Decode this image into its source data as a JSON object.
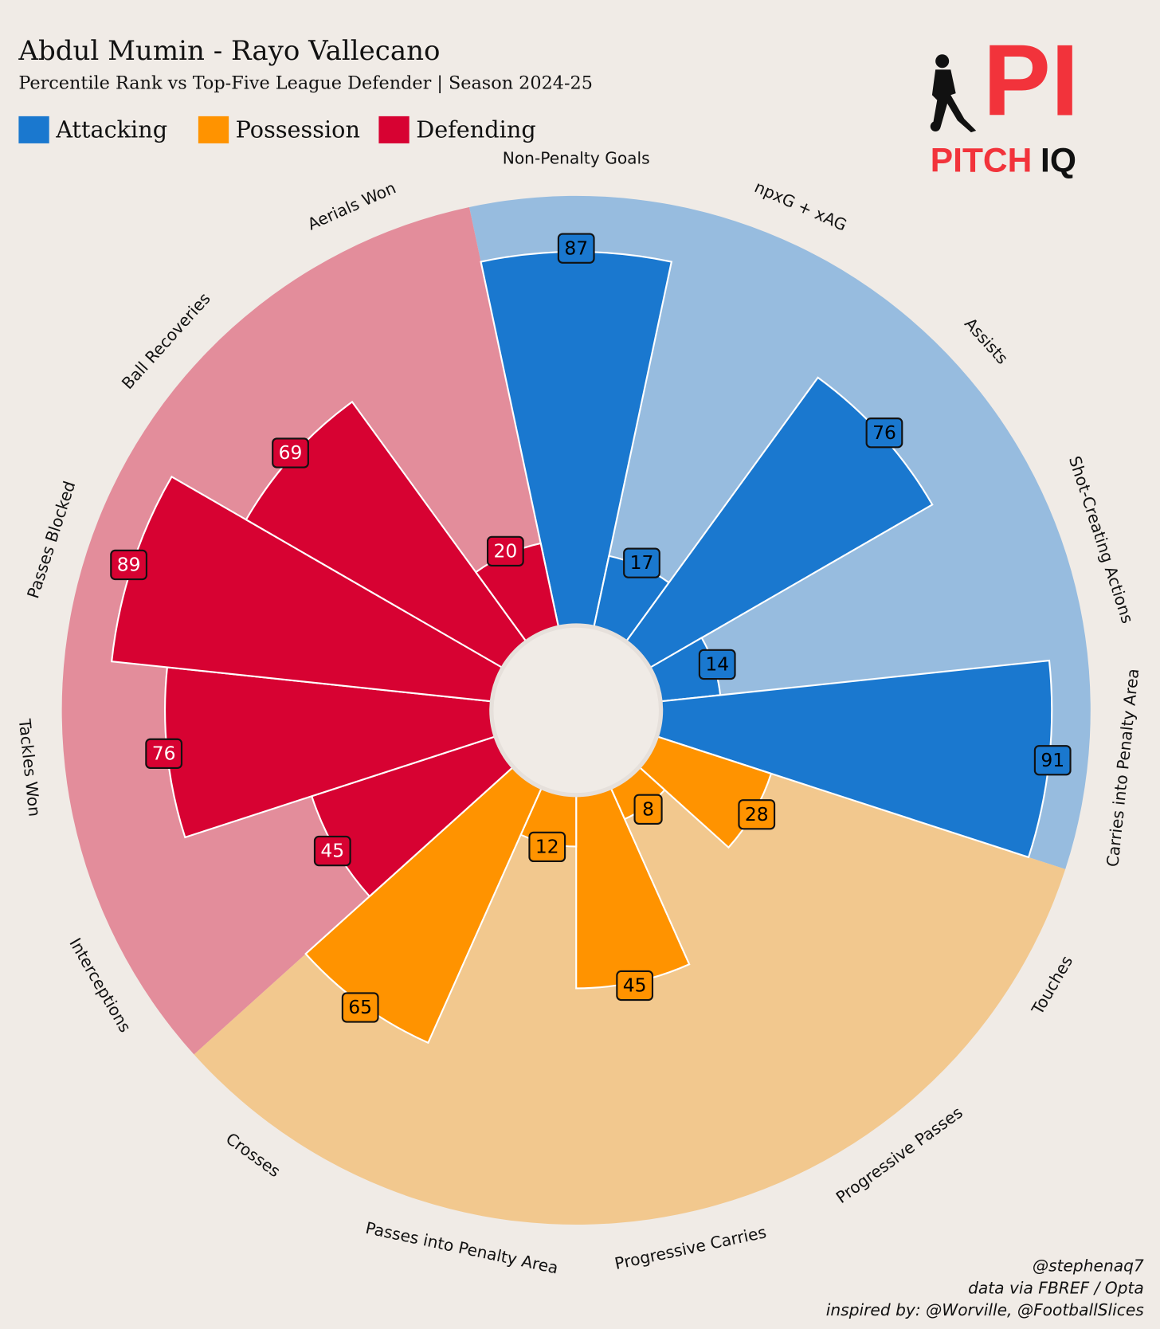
{
  "chart_data": {
    "type": "pizza",
    "title": "Abdul Mumin - Rayo Vallecano",
    "subtitle": "Percentile Rank vs Top-Five League Defender | Season 2024-25",
    "ylim": [
      0,
      100
    ],
    "series": [
      {
        "name": "Attacking",
        "color": "#1a78cf",
        "background": "#97bcdf",
        "label_color": "#000000",
        "categories": [
          "Non-Penalty Goals",
          "npxG + xAG",
          "Assists",
          "Shot-Creating Actions",
          "Carries into Penalty Area"
        ],
        "values": [
          87,
          17,
          76,
          14,
          91
        ]
      },
      {
        "name": "Possession",
        "color": "#ff9300",
        "background": "#f2c88e",
        "label_color": "#000000",
        "categories": [
          "Touches",
          "Progressive Passes",
          "Progressive Carries",
          "Passes into Penalty Area",
          "Crosses"
        ],
        "values": [
          28,
          8,
          45,
          12,
          65
        ]
      },
      {
        "name": "Defending",
        "color": "#d70232",
        "background": "#e38d9b",
        "label_color": "#ffffff",
        "categories": [
          "Interceptions",
          "Tackles Won",
          "Passes Blocked",
          "Ball Recoveries",
          "Aerials Won"
        ],
        "values": [
          45,
          76,
          89,
          69,
          20
        ]
      }
    ],
    "logo": {
      "mark": "PI",
      "word1": "PITCH",
      "word2": "IQ"
    },
    "credits": [
      "@stephenaq7",
      "data via FBREF / Opta",
      "inspired by: @Worville, @FootballSlices"
    ]
  }
}
